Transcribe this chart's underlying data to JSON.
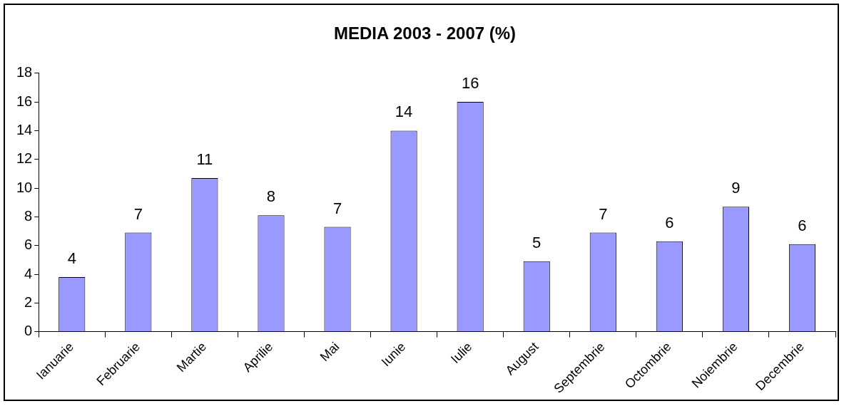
{
  "chart_data": {
    "type": "bar",
    "title": "MEDIA 2003 - 2007 (%)",
    "categories": [
      "Ianuarie",
      "Februarie",
      "Martie",
      "Aprilie",
      "Mai",
      "Iunie",
      "Iulie",
      "August",
      "Septembrie",
      "Octombrie",
      "Noiembrie",
      "Decembrie"
    ],
    "values": [
      3.8,
      6.9,
      10.7,
      8.1,
      7.3,
      14.0,
      16.0,
      4.9,
      6.9,
      6.3,
      8.7,
      6.1
    ],
    "value_labels": [
      "4",
      "7",
      "11",
      "8",
      "7",
      "14",
      "16",
      "5",
      "7",
      "6",
      "9",
      "6"
    ],
    "color": "#9999ff",
    "ylim": [
      0,
      18
    ],
    "yticks": [
      0,
      2,
      4,
      6,
      8,
      10,
      12,
      14,
      16,
      18
    ],
    "grid": false,
    "legend": false
  }
}
